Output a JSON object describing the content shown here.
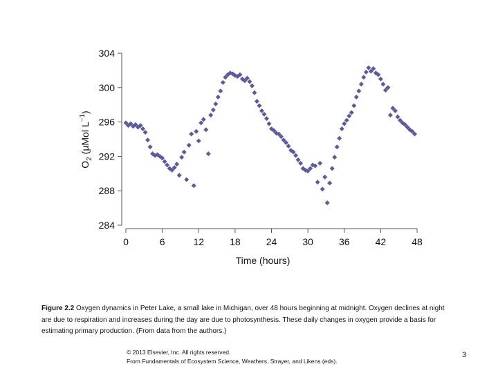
{
  "chart_data": {
    "type": "scatter",
    "ylabel_parts": [
      "O",
      "2",
      " (µMol L",
      "−1",
      ")"
    ],
    "xlabel": "Time (hours)",
    "xlim": [
      0,
      48
    ],
    "xticks": [
      0,
      6,
      12,
      18,
      24,
      30,
      36,
      42,
      48
    ],
    "ylim": [
      284,
      304
    ],
    "yticks": [
      284,
      288,
      292,
      296,
      300,
      304
    ],
    "color": "#5a5a9e",
    "x": [
      0,
      0.4,
      0.8,
      1.2,
      1.6,
      2,
      2.4,
      2.8,
      3.2,
      3.6,
      4,
      4.4,
      4.8,
      5.2,
      5.6,
      6,
      6.4,
      6.8,
      7.2,
      7.6,
      8,
      8.4,
      8.8,
      9.2,
      9.6,
      10,
      10.4,
      10.8,
      11.2,
      11.6,
      12,
      12.4,
      12.8,
      13.2,
      13.6,
      14,
      14.4,
      14.8,
      15.2,
      15.6,
      16,
      16.4,
      16.8,
      17.2,
      17.6,
      18,
      18.4,
      18.8,
      19.2,
      19.6,
      20,
      20.4,
      20.8,
      21.2,
      21.6,
      22,
      22.4,
      22.8,
      23.2,
      23.6,
      24,
      24.4,
      24.8,
      25.2,
      25.6,
      26,
      26.4,
      26.8,
      27.2,
      27.6,
      28,
      28.4,
      28.8,
      29.2,
      29.6,
      30,
      30.4,
      30.8,
      31.2,
      31.6,
      32,
      32.4,
      32.8,
      33.2,
      33.6,
      34,
      34.4,
      34.8,
      35.2,
      35.6,
      36,
      36.4,
      36.8,
      37.2,
      37.6,
      38,
      38.4,
      38.8,
      39.2,
      39.6,
      40,
      40.4,
      40.8,
      41.2,
      41.6,
      42,
      42.4,
      42.8,
      43.2,
      43.6,
      44,
      44.4,
      44.8,
      45.2,
      45.6,
      46,
      46.4,
      46.8,
      47.2,
      47.6
    ],
    "values": [
      295.9,
      295.6,
      295.8,
      295.5,
      295.7,
      295.4,
      295.6,
      295.2,
      294.8,
      293.9,
      293.1,
      292.3,
      292.1,
      292.2,
      292.0,
      291.8,
      291.4,
      291.0,
      290.6,
      290.4,
      290.7,
      291.1,
      289.8,
      291.9,
      292.5,
      289.3,
      293.3,
      294.6,
      288.6,
      294.9,
      293.8,
      295.9,
      296.3,
      295.1,
      292.3,
      296.8,
      297.4,
      298.1,
      298.9,
      299.6,
      300.6,
      301.2,
      301.5,
      301.7,
      301.6,
      301.4,
      301.3,
      301.5,
      301.0,
      300.8,
      301.1,
      300.7,
      300.2,
      299.4,
      298.4,
      297.9,
      297.3,
      296.9,
      296.4,
      295.8,
      295.2,
      295.0,
      294.7,
      294.6,
      294.3,
      293.9,
      293.6,
      293.2,
      292.7,
      292.5,
      292.1,
      291.6,
      291.2,
      290.6,
      290.4,
      290.3,
      290.6,
      291.0,
      290.9,
      289.0,
      291.2,
      288.2,
      289.6,
      286.6,
      288.9,
      290.6,
      291.9,
      293.1,
      294.1,
      295.2,
      295.8,
      296.2,
      296.7,
      297.1,
      297.9,
      298.9,
      299.6,
      300.4,
      301.2,
      301.8,
      302.3,
      301.9,
      302.2,
      301.7,
      301.5,
      301.0,
      300.4,
      299.7,
      300.0,
      296.8,
      297.6,
      297.3,
      296.6,
      296.2,
      295.9,
      295.7,
      295.4,
      295.1,
      294.9,
      294.6
    ]
  },
  "caption": {
    "label": "Figure 2.2",
    "text": " Oxygen dynamics in Peter Lake, a small lake in Michigan, over 48 hours beginning at midnight. Oxygen declines at night are due to respiration and increases during the day are due to photosynthesis. These daily changes in oxygen provide a basis for estimating primary production. (From data from the authors.)"
  },
  "footer": {
    "copyright": "© 2013 Elsevier, Inc. All rights reserved.",
    "source": "From Fundamentals of Ecosystem Science, Weathers, Strayer, and Likens (eds).",
    "page": "3"
  }
}
